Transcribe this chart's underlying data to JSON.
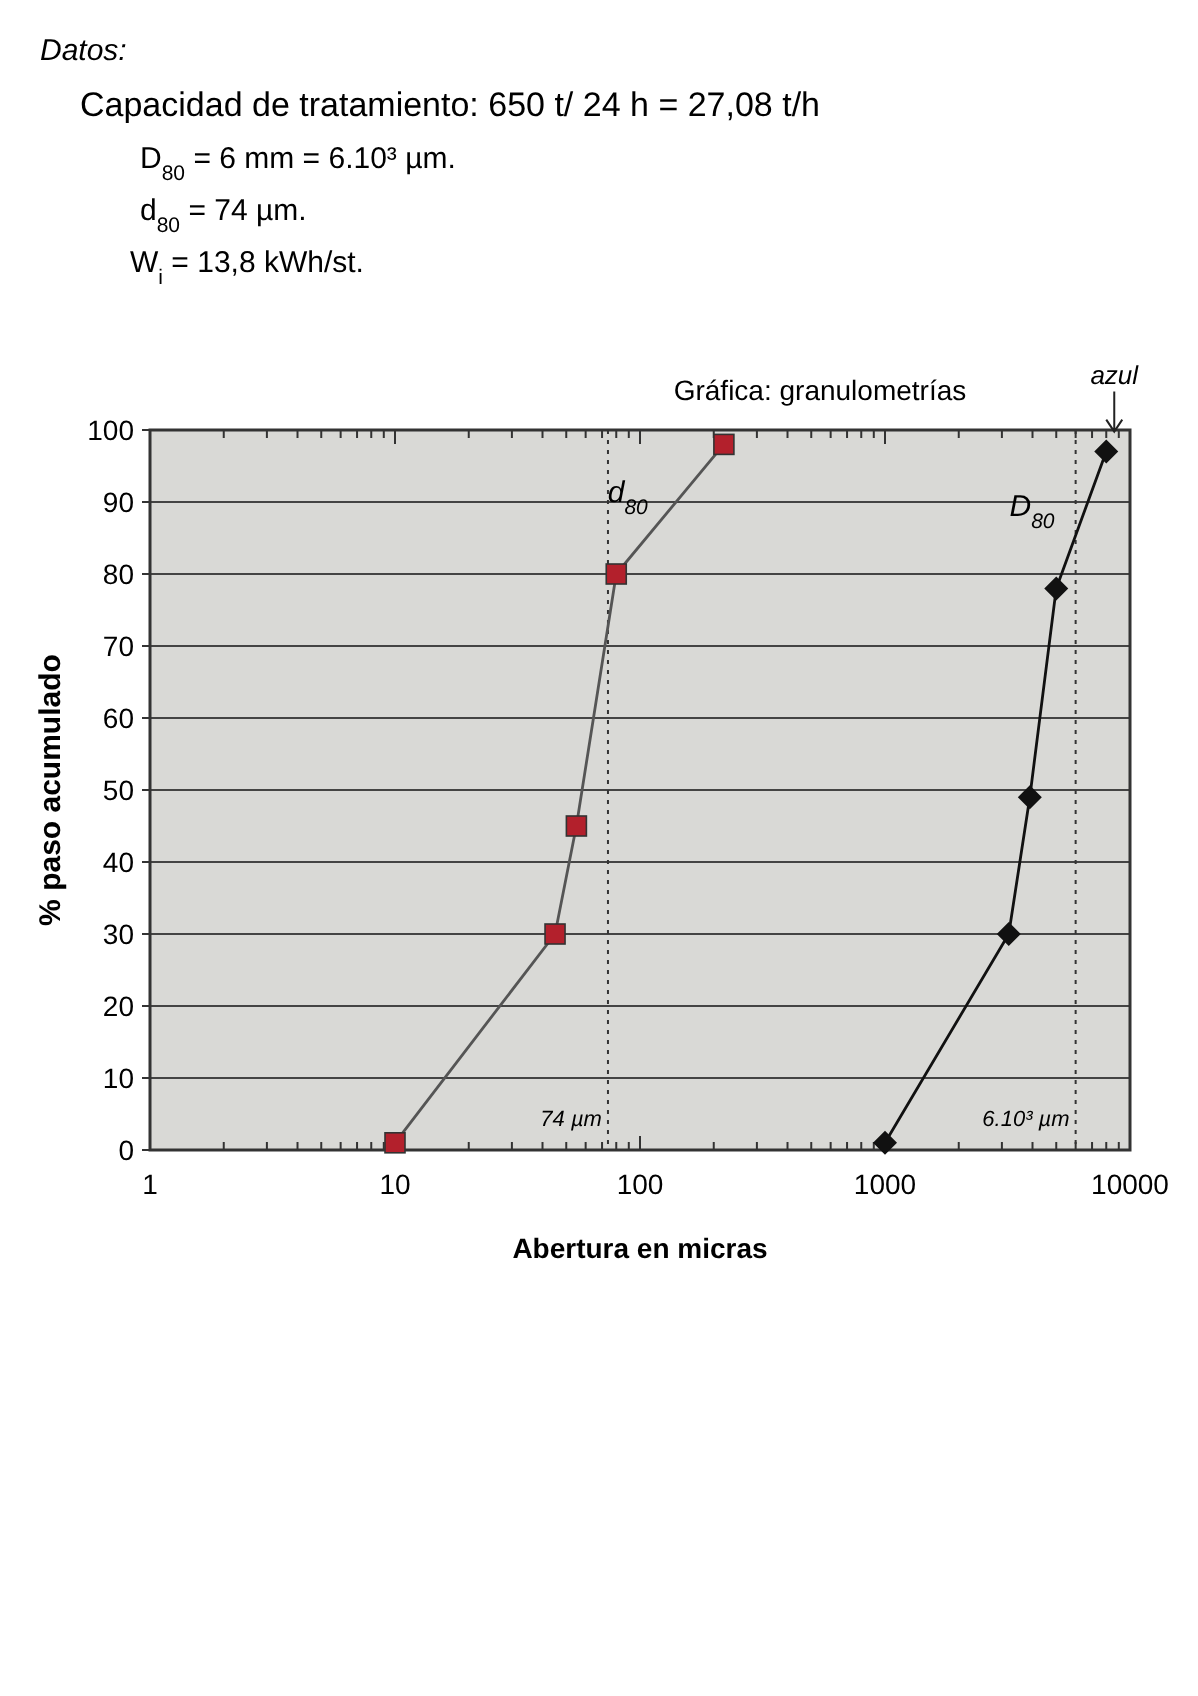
{
  "chart_data": {
    "type": "line",
    "title": "Gráfica: granulometrías",
    "xlabel": "Abertura en micras",
    "ylabel": "% paso acumulado",
    "annotations": [
      "Datos:",
      "Capacidad de tratamiento: 650 t/ 24 h = 27,08 t/h",
      "D$_{80}$ = 6 mm = 6.10³ µm.",
      "d$_{80}$ = 74 µm.",
      "W$_{i}$ = 13,8 kWh/st.",
      {
        "text": "d$_{80}$",
        "x": 140,
        "y": 90
      },
      {
        "text": "D$_{80}$",
        "x": 6400,
        "y": 88
      },
      {
        "text": "azul",
        "x": 8000,
        "y": 97
      }
    ],
    "log": "x",
    "xlim": [
      1,
      10000
    ],
    "xticks": [
      1,
      {
        "value": 2,
        "label": null
      },
      {
        "value": 3,
        "label": null
      },
      {
        "value": 4,
        "label": null
      },
      {
        "value": 5,
        "label": null
      },
      {
        "value": 6,
        "label": null
      },
      {
        "value": 7,
        "label": null
      },
      {
        "value": 8,
        "label": null
      },
      {
        "value": 9,
        "label": null
      },
      10,
      {
        "value": 20,
        "label": null
      },
      {
        "value": 30,
        "label": null
      },
      {
        "value": 40,
        "label": null
      },
      {
        "value": 50,
        "label": null
      },
      {
        "value": 60,
        "label": null
      },
      {
        "value": 70,
        "label": null
      },
      {
        "value": 80,
        "label": null
      },
      {
        "value": 90,
        "label": null
      },
      100,
      {
        "value": 200,
        "label": null
      },
      {
        "value": 300,
        "label": null
      },
      {
        "value": 400,
        "label": null
      },
      {
        "value": 500,
        "label": null
      },
      {
        "value": 600,
        "label": null
      },
      {
        "value": 700,
        "label": null
      },
      {
        "value": 800,
        "label": null
      },
      {
        "value": 900,
        "label": null
      },
      1000,
      {
        "value": 2000,
        "label": null
      },
      {
        "value": 3000,
        "label": null
      },
      {
        "value": 4000,
        "label": null
      },
      {
        "value": 5000,
        "label": null
      },
      {
        "value": 6000,
        "label": null
      },
      {
        "value": 7000,
        "label": null
      },
      {
        "value": 8000,
        "label": null
      },
      {
        "value": 9000,
        "label": null
      },
      10000
    ],
    "ylim": [
      0,
      100
    ],
    "yticks": [
      0,
      10,
      20,
      30,
      40,
      50,
      60,
      70,
      80,
      90,
      100
    ],
    "grid": "y",
    "line_style": "solid",
    "ref_lines": [
      {
        "axis": "x",
        "value": 74,
        "label": "74 µm",
        "line_style": "dotted"
      },
      {
        "axis": "x",
        "value": 6000,
        "label": "6.10³ µm",
        "line_style": "dotted"
      }
    ],
    "series": [
      {
        "color": "#b3202c",
        "marker": "square",
        "x": [
          10,
          45,
          55,
          80,
          220
        ],
        "values": [
          1,
          30,
          45,
          80,
          98
        ]
      },
      {
        "color": "#111111",
        "marker": "diamond",
        "x": [
          1000,
          3200,
          3900,
          5000,
          8000
        ],
        "values": [
          1,
          30,
          49,
          78,
          97
        ]
      }
    ]
  }
}
